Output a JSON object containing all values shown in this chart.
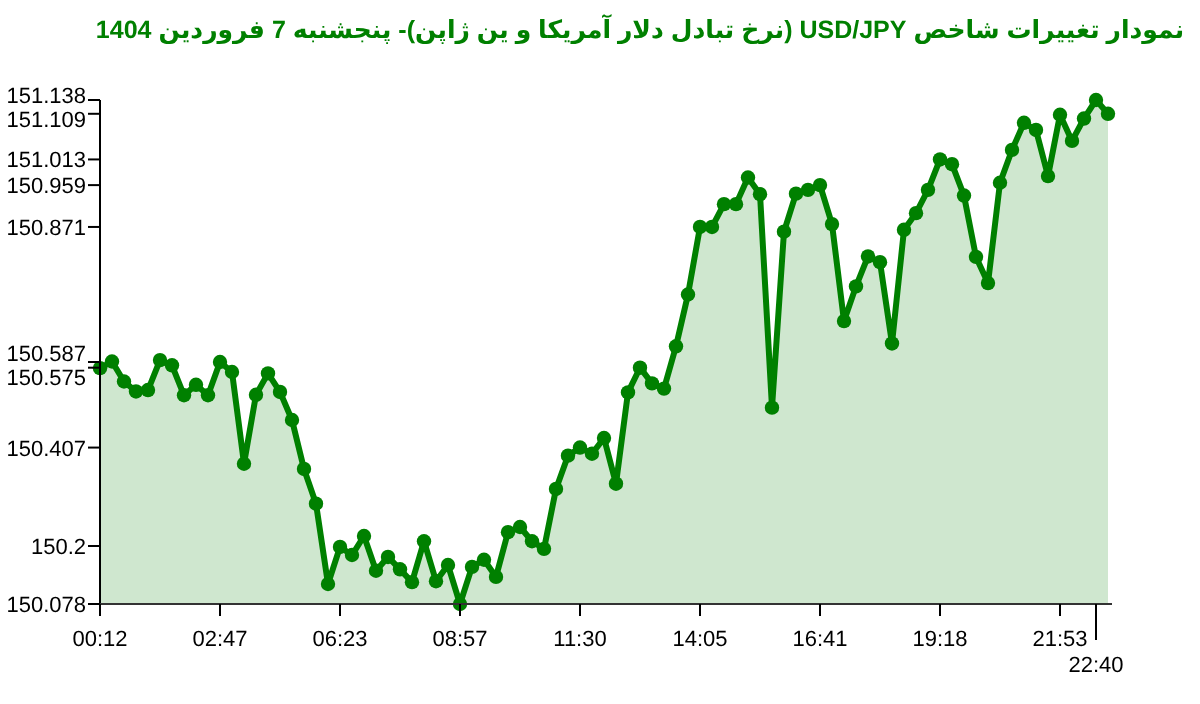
{
  "chart_data": {
    "type": "area",
    "title": "نمودار تغییرات شاخص USD/JPY (نرخ تبادل دلار آمریکا و ین ژاپن)- پنجشنبه  7 فروردین 1404",
    "categories": [
      "00:12",
      null,
      null,
      null,
      null,
      null,
      null,
      null,
      null,
      null,
      "02:47",
      null,
      null,
      null,
      null,
      null,
      null,
      null,
      null,
      null,
      "06:23",
      null,
      null,
      null,
      null,
      null,
      null,
      null,
      null,
      null,
      "08:57",
      null,
      null,
      null,
      null,
      null,
      null,
      null,
      null,
      null,
      "11:30",
      null,
      null,
      null,
      null,
      null,
      null,
      null,
      null,
      null,
      "14:05",
      null,
      null,
      null,
      null,
      null,
      null,
      null,
      null,
      null,
      "16:41",
      null,
      null,
      null,
      null,
      null,
      null,
      null,
      null,
      null,
      "19:18",
      null,
      null,
      null,
      null,
      null,
      null,
      null,
      null,
      null,
      "21:53",
      null,
      null,
      "22:40",
      null
    ],
    "values": [
      150.574,
      150.588,
      150.546,
      150.525,
      150.528,
      150.591,
      150.58,
      150.517,
      150.539,
      150.517,
      150.587,
      150.566,
      150.373,
      150.518,
      150.563,
      150.524,
      150.465,
      150.362,
      150.289,
      150.12,
      150.198,
      150.181,
      150.221,
      150.148,
      150.177,
      150.151,
      150.124,
      150.21,
      150.126,
      150.16,
      150.078,
      150.156,
      150.171,
      150.135,
      150.229,
      150.24,
      150.21,
      150.194,
      150.32,
      150.39,
      150.407,
      150.394,
      150.427,
      150.331,
      150.523,
      150.575,
      150.542,
      150.531,
      150.62,
      150.729,
      150.871,
      150.871,
      150.919,
      150.919,
      150.975,
      150.94,
      150.491,
      150.861,
      150.941,
      150.949,
      150.959,
      150.877,
      150.673,
      150.746,
      150.809,
      150.797,
      150.626,
      150.865,
      150.9,
      150.949,
      151.013,
      151.003,
      150.937,
      150.808,
      150.753,
      150.964,
      151.033,
      151.09,
      151.075,
      150.978,
      151.107,
      151.052,
      151.099,
      151.138,
      151.109
    ],
    "color": "#008000",
    "marker": "circle",
    "ylim": [
      150.078,
      151.138
    ],
    "yticks": [
      150.078,
      150.2,
      150.407,
      150.575,
      150.587,
      150.871,
      150.959,
      151.013,
      151.109,
      151.138
    ]
  }
}
